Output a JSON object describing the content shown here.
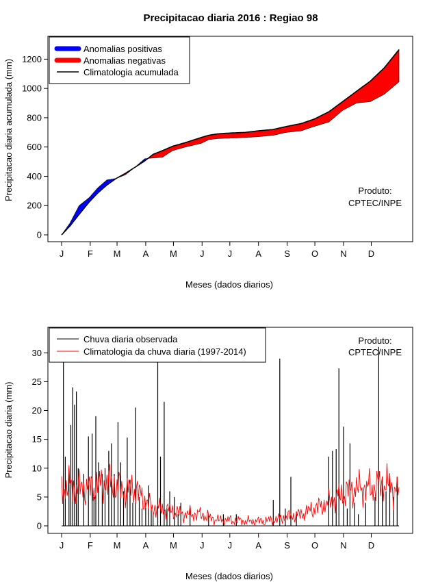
{
  "title": "Precipitacao diaria 2016 : Regiao 98",
  "chart_data": [
    {
      "type": "area",
      "ylabel": "Precipitacao diaria acumulada (mm)",
      "xlabel": "Meses (dados diarios)",
      "months": [
        "J",
        "F",
        "M",
        "A",
        "M",
        "J",
        "J",
        "A",
        "S",
        "O",
        "N",
        "D"
      ],
      "xlim": [
        1,
        366
      ],
      "ylim": [
        0,
        1300
      ],
      "yticks": [
        0,
        200,
        400,
        600,
        800,
        1000,
        1200
      ],
      "legend": [
        {
          "label": "Anomalias positivas",
          "color": "#0000ff"
        },
        {
          "label": "Anomalias negativas",
          "color": "#ff0000"
        },
        {
          "label": "Climatologia acumulada",
          "color": "#000000"
        }
      ],
      "annotation": [
        "Produto:",
        "CPTEC/INPE"
      ],
      "climatology_cumulative": {
        "day": [
          1,
          10,
          20,
          31,
          40,
          50,
          60,
          70,
          80,
          91,
          100,
          110,
          121,
          135,
          152,
          160,
          170,
          182,
          200,
          213,
          230,
          244,
          260,
          274,
          290,
          305,
          320,
          335,
          350,
          366
        ],
        "value": [
          0,
          60,
          140,
          225,
          285,
          340,
          385,
          420,
          460,
          505,
          550,
          575,
          605,
          630,
          665,
          680,
          690,
          695,
          700,
          710,
          720,
          740,
          760,
          790,
          840,
          910,
          980,
          1050,
          1140,
          1265
        ]
      },
      "observed_cumulative": {
        "day": [
          1,
          10,
          20,
          31,
          40,
          50,
          60,
          70,
          80,
          91,
          100,
          110,
          121,
          135,
          152,
          160,
          170,
          182,
          200,
          213,
          230,
          244,
          260,
          274,
          290,
          305,
          320,
          335,
          350,
          366
        ],
        "value": [
          0,
          80,
          200,
          255,
          320,
          375,
          385,
          410,
          460,
          520,
          525,
          530,
          575,
          600,
          625,
          650,
          658,
          660,
          665,
          670,
          680,
          700,
          710,
          740,
          770,
          850,
          900,
          910,
          960,
          1045
        ]
      }
    },
    {
      "type": "line",
      "ylabel": "Precipitacao diaria (mm)",
      "xlabel": "Meses (dados diarios)",
      "months": [
        "J",
        "F",
        "M",
        "A",
        "M",
        "J",
        "J",
        "A",
        "S",
        "O",
        "N",
        "D"
      ],
      "xlim": [
        1,
        366
      ],
      "ylim": [
        0,
        33
      ],
      "yticks": [
        0,
        5,
        10,
        15,
        20,
        25,
        30
      ],
      "legend": [
        {
          "label": "Chuva diaria observada",
          "color": "#000000"
        },
        {
          "label": "Climatologia da chuva diaria (1997-2014)",
          "color": "#ff0000"
        }
      ],
      "annotation": [
        "Produto:",
        "CPTEC/INPE"
      ],
      "observed_peaks": {
        "day": [
          3,
          5,
          9,
          11,
          13,
          15,
          17,
          19,
          25,
          30,
          34,
          36,
          38,
          41,
          45,
          48,
          52,
          55,
          58,
          62,
          65,
          68,
          72,
          75,
          78,
          81,
          85,
          88,
          92,
          95,
          98,
          100,
          105,
          108,
          112,
          115,
          118,
          123,
          127,
          130,
          140,
          160,
          176,
          190,
          230,
          237,
          243,
          249,
          255,
          290,
          294,
          298,
          301,
          306,
          310,
          313,
          318,
          322,
          330,
          340,
          344,
          348,
          352,
          356,
          360,
          364
        ],
        "value": [
          29,
          12,
          10,
          17.5,
          24,
          21,
          23.3,
          10,
          9,
          15.5,
          16,
          5,
          19,
          11,
          9,
          10,
          13,
          14.3,
          9,
          18,
          11,
          6,
          15.3,
          8,
          4,
          20.5,
          5,
          3,
          4,
          7,
          3,
          2,
          29,
          12,
          21.5,
          3,
          6,
          5,
          2,
          4,
          3,
          2,
          2,
          2,
          4.5,
          29,
          3,
          8.5,
          2,
          12,
          13,
          13.3,
          27.3,
          17.2,
          3,
          14.3,
          4,
          2,
          4,
          5,
          31,
          8.5,
          6,
          8.2,
          5,
          8.5
        ]
      },
      "climatology_daily": {
        "day": [
          1,
          10,
          20,
          31,
          40,
          50,
          60,
          70,
          80,
          91,
          100,
          110,
          121,
          135,
          152,
          160,
          170,
          182,
          200,
          213,
          230,
          244,
          260,
          274,
          290,
          305,
          320,
          335,
          350,
          366
        ],
        "value": [
          6.5,
          7,
          6.5,
          6.5,
          7,
          7.5,
          7,
          6,
          6.5,
          4.5,
          3,
          3,
          2.5,
          2,
          2,
          1.5,
          1,
          1,
          0.8,
          0.8,
          1,
          1.5,
          2,
          3,
          4,
          5.5,
          6.5,
          6.5,
          7.5,
          6
        ]
      }
    }
  ]
}
